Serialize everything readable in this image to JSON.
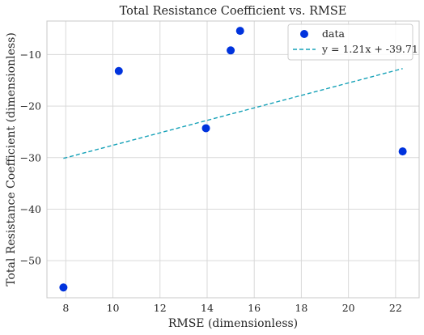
{
  "chart_data": {
    "type": "scatter",
    "title": "Total Resistance Coefficient vs. RMSE",
    "xlabel": "RMSE (dimensionless)",
    "ylabel": "Total Resistance Coefficient (dimensionless)",
    "xlim": [
      7.2,
      23.0
    ],
    "ylim": [
      -57.2,
      -3.5
    ],
    "xticks": [
      8,
      10,
      12,
      14,
      16,
      18,
      20,
      22
    ],
    "yticks": [
      -50,
      -40,
      -30,
      -20,
      -10
    ],
    "grid": true,
    "legend_position": "top-right",
    "series": [
      {
        "name": "data",
        "kind": "scatter",
        "color": "#0033dd",
        "points": [
          {
            "x": 7.9,
            "y": -55.2
          },
          {
            "x": 10.25,
            "y": -13.2
          },
          {
            "x": 13.95,
            "y": -24.3
          },
          {
            "x": 15.0,
            "y": -9.2
          },
          {
            "x": 15.4,
            "y": -5.4
          },
          {
            "x": 22.3,
            "y": -28.8
          }
        ]
      },
      {
        "name": "y = 1.21x + -39.71",
        "kind": "line",
        "color": "#17a2b8",
        "slope": 1.21,
        "intercept": -39.71,
        "x_range": [
          7.9,
          22.3
        ]
      }
    ]
  }
}
